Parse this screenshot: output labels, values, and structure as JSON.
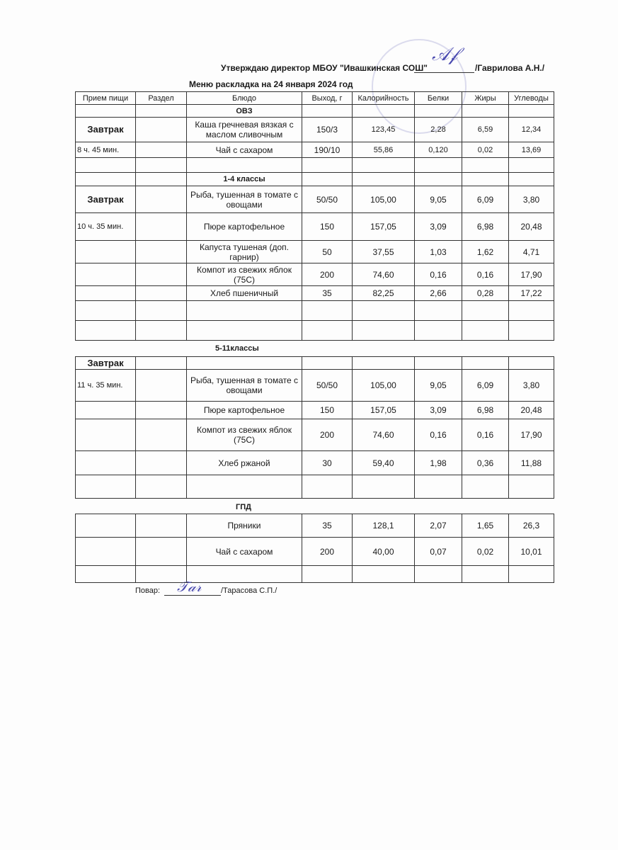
{
  "header": {
    "approval_text": "Утверждаю директор МБОУ \"Ивашкинская СОШ\"",
    "director_name": "/Гаврилова А.Н./",
    "menu_title": "Меню раскладка на  24 января 2024 год"
  },
  "columns": [
    "Прием пищи",
    "Раздел",
    "Блюдо",
    "Выход, г",
    "Калорийность",
    "Белки",
    "Жиры",
    "Углеводы"
  ],
  "table1": [
    [
      "",
      "",
      "ОВЗ",
      "",
      "",
      "",
      "",
      ""
    ],
    [
      "Завтрак",
      "",
      "Каша гречневая вязкая с маслом сливочным",
      "150/3",
      "123,45",
      "2,28",
      "6,59",
      "12,34"
    ],
    [
      "8 ч. 45 мин.",
      "",
      "Чай с сахаром",
      "190/10",
      "55,86",
      "0,120",
      "0,02",
      "13,69"
    ],
    [
      "",
      "",
      "",
      "",
      "",
      "",
      "",
      ""
    ],
    [
      "",
      "",
      "1-4 классы",
      "",
      "",
      "",
      "",
      ""
    ],
    [
      "Завтрак",
      "",
      "Рыба, тушенная в томате с овощами",
      "50/50",
      "105,00",
      "9,05",
      "6,09",
      "3,80"
    ],
    [
      "10 ч. 35 мин.",
      "",
      "Пюре картофельное",
      "150",
      "157,05",
      "3,09",
      "6,98",
      "20,48"
    ],
    [
      "",
      "",
      "Капуста тушеная (доп. гарнир)",
      "50",
      "37,55",
      "1,03",
      "1,62",
      "4,71"
    ],
    [
      "",
      "",
      "Компот из свежих яблок (75С)",
      "200",
      "74,60",
      "0,16",
      "0,16",
      "17,90"
    ],
    [
      "",
      "",
      "Хлеб пшеничный",
      "35",
      "82,25",
      "2,66",
      "0,28",
      "17,22"
    ],
    [
      "",
      "",
      "",
      "",
      "",
      "",
      "",
      ""
    ],
    [
      "",
      "",
      "",
      "",
      "",
      "",
      "",
      ""
    ]
  ],
  "section2_label": "5-11классы",
  "table2": [
    [
      "Завтрак",
      "",
      "",
      "",
      "",
      "",
      "",
      ""
    ],
    [
      "11 ч. 35 мин.",
      "",
      "Рыба, тушенная в томате с овощами",
      "50/50",
      "105,00",
      "9,05",
      "6,09",
      "3,80"
    ],
    [
      "",
      "",
      "Пюре картофельное",
      "150",
      "157,05",
      "3,09",
      "6,98",
      "20,48"
    ],
    [
      "",
      "",
      "Компот из свежих яблок (75С)",
      "200",
      "74,60",
      "0,16",
      "0,16",
      "17,90"
    ],
    [
      "",
      "",
      "Хлеб ржаной",
      "30",
      "59,40",
      "1,98",
      "0,36",
      "11,88"
    ],
    [
      "",
      "",
      "",
      "",
      "",
      "",
      "",
      ""
    ]
  ],
  "section3_label": "ГПД",
  "table3": [
    [
      "",
      "",
      "Пряники",
      "35",
      "128,1",
      "2,07",
      "1,65",
      "26,3"
    ],
    [
      "",
      "",
      "Чай с сахаром",
      "200",
      "40,00",
      "0,07",
      "0,02",
      "10,01"
    ],
    [
      "",
      "",
      "",
      "",
      "",
      "",
      "",
      ""
    ]
  ],
  "footer": {
    "cook_label": "Повар:",
    "cook_name": "/Тарасова С.П./"
  }
}
